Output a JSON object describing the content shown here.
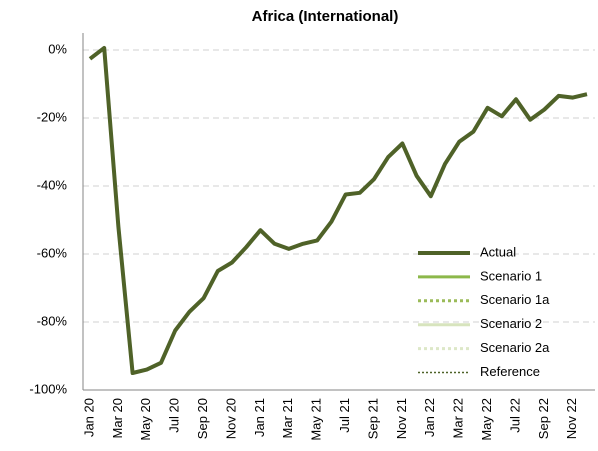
{
  "chart_data": {
    "type": "line",
    "title": "Africa (International)",
    "categories": [
      "Jan 20",
      null,
      "Mar 20",
      null,
      "May 20",
      null,
      "Jul 20",
      null,
      "Sep 20",
      null,
      "Nov 20",
      null,
      "Jan 21",
      null,
      "Mar 21",
      null,
      "May 21",
      null,
      "Jul 21",
      null,
      "Sep 21",
      null,
      "Nov 21",
      null,
      "Jan 22",
      null,
      "Mar 22",
      null,
      "May 22",
      null,
      "Jul 22",
      null,
      "Sep 22",
      null,
      "Nov 22",
      null
    ],
    "series": [
      {
        "name": "Actual",
        "color": "#4f6228",
        "style": "solid",
        "weight": "heavy",
        "values": [
          -2.6,
          0.6,
          -52,
          -95,
          -94,
          -92,
          -82.5,
          -77,
          -73,
          -65,
          -62.5,
          -58,
          -53,
          -57,
          -58.5,
          -57,
          -56,
          -50.5,
          -42.5,
          -42,
          -38,
          -31.5,
          -27.5,
          -37,
          -43,
          -33.5,
          -27,
          -24,
          -17,
          -19.5,
          -14.5,
          -20.5,
          -17.5,
          -13.5,
          -14,
          -13
        ]
      },
      {
        "name": "Scenario 1",
        "color": "#8cb84a",
        "style": "solid",
        "weight": "normal",
        "values": [
          null,
          null,
          null,
          null,
          null,
          null,
          null,
          null,
          null,
          null,
          null,
          null,
          null,
          null,
          null,
          null,
          null,
          null,
          null,
          null,
          null,
          null,
          null,
          null,
          null,
          null,
          null,
          null,
          null,
          null,
          null,
          null,
          null,
          null,
          null,
          null
        ]
      },
      {
        "name": "Scenario 1a",
        "color": "#9bbb59",
        "style": "dotted",
        "weight": "normal",
        "values": [
          null,
          null,
          null,
          null,
          null,
          null,
          null,
          null,
          null,
          null,
          null,
          null,
          null,
          null,
          null,
          null,
          null,
          null,
          null,
          null,
          null,
          null,
          null,
          null,
          null,
          null,
          null,
          null,
          null,
          null,
          null,
          null,
          null,
          null,
          null,
          null
        ]
      },
      {
        "name": "Scenario 2",
        "color": "#d7e4bd",
        "style": "solid",
        "weight": "normal",
        "values": [
          null,
          null,
          null,
          null,
          null,
          null,
          null,
          null,
          null,
          null,
          null,
          null,
          null,
          null,
          null,
          null,
          null,
          null,
          null,
          null,
          null,
          null,
          null,
          null,
          null,
          null,
          null,
          null,
          null,
          null,
          null,
          null,
          null,
          null,
          null,
          null
        ]
      },
      {
        "name": "Scenario 2a",
        "color": "#dde8c8",
        "style": "dotted",
        "weight": "normal",
        "values": [
          null,
          null,
          null,
          null,
          null,
          null,
          null,
          null,
          null,
          null,
          null,
          null,
          null,
          null,
          null,
          null,
          null,
          null,
          null,
          null,
          null,
          null,
          null,
          null,
          null,
          null,
          null,
          null,
          null,
          null,
          null,
          null,
          null,
          null,
          null,
          null
        ]
      },
      {
        "name": "Reference",
        "color": "#4f6228",
        "style": "dotted",
        "weight": "light",
        "values": [
          null,
          null,
          null,
          null,
          null,
          null,
          null,
          null,
          null,
          null,
          null,
          null,
          null,
          null,
          null,
          null,
          null,
          null,
          null,
          null,
          null,
          null,
          null,
          null,
          null,
          null,
          null,
          null,
          null,
          null,
          null,
          null,
          null,
          null,
          null,
          null
        ]
      }
    ],
    "ylim": [
      -100,
      5
    ],
    "yticks": [
      {
        "value": -100,
        "label": "-100%"
      },
      {
        "value": -80,
        "label": "-80%"
      },
      {
        "value": -60,
        "label": "-60%"
      },
      {
        "value": -40,
        "label": "-40%"
      },
      {
        "value": -20,
        "label": "-20%"
      },
      {
        "value": 0,
        "label": "0%"
      }
    ],
    "grid": true,
    "legend": "lower right"
  }
}
